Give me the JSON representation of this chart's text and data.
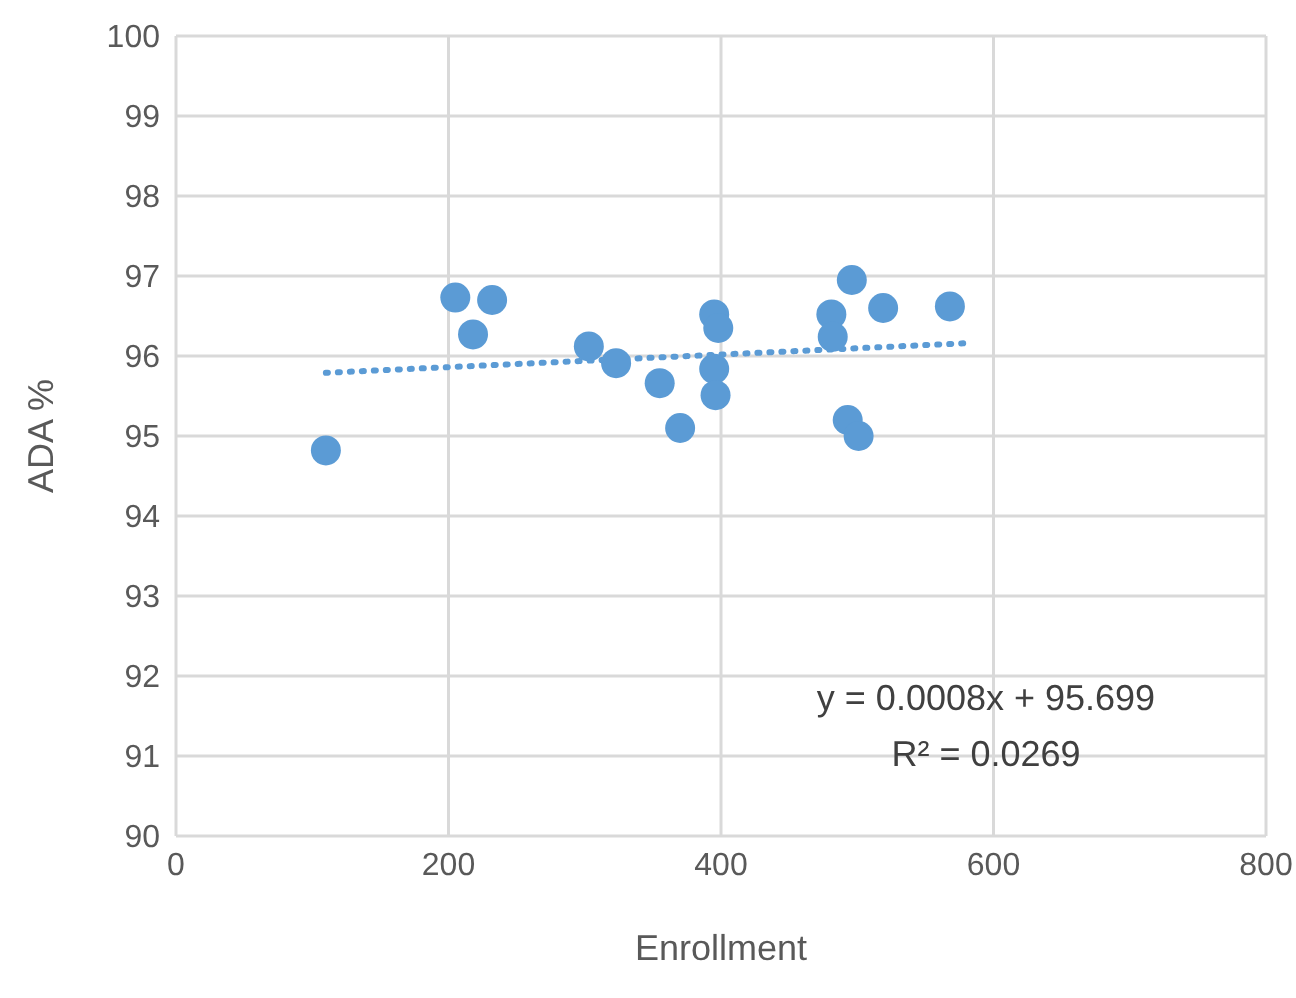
{
  "chart_data": {
    "type": "scatter",
    "xlabel": "Enrollment",
    "ylabel": "ADA %",
    "xlim": [
      0,
      800
    ],
    "xticks": [
      0,
      200,
      400,
      600,
      800
    ],
    "ylim": [
      90,
      100
    ],
    "yticks": [
      90,
      91,
      92,
      93,
      94,
      95,
      96,
      97,
      98,
      99,
      100
    ],
    "grid": true,
    "legend": false,
    "marker": "circle",
    "annotations": [
      "y = 0.0008x + 95.699",
      "R² = 0.0269"
    ],
    "series": [
      {
        "color": "#5b9bd5",
        "x": [
          110,
          205,
          232,
          218,
          303,
          323,
          355,
          370,
          395,
          398,
          395,
          396,
          481,
          482,
          496,
          519,
          568,
          493,
          501
        ],
        "values": [
          94.82,
          96.73,
          96.7,
          96.27,
          96.12,
          95.91,
          95.66,
          95.1,
          96.52,
          96.35,
          95.84,
          95.51,
          96.52,
          96.24,
          96.95,
          96.6,
          96.62,
          95.2,
          95.0
        ]
      },
      {
        "type": "line",
        "color": "#5b9bd5",
        "line_style": "dotted",
        "marker": "none",
        "x": [
          110,
          580
        ],
        "values": [
          95.79,
          96.16
        ]
      }
    ]
  }
}
